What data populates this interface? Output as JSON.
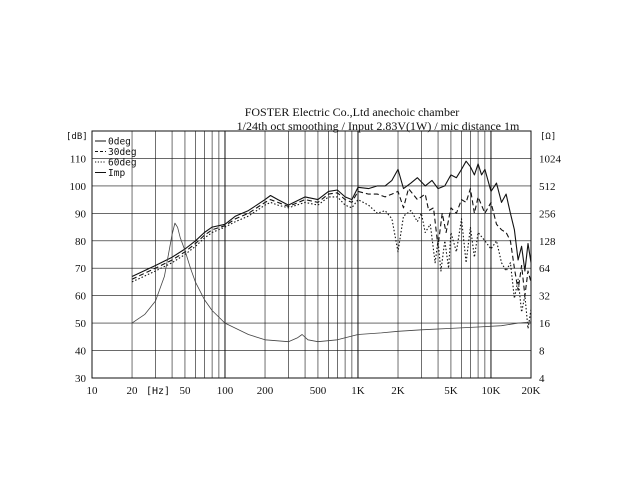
{
  "chart_data": {
    "type": "line",
    "title_lines": [
      "FOSTER Electric Co.,Ltd  anechoic chamber",
      "1/24th oct smoothing / Input 2.83V(1W) / mic distance 1m"
    ],
    "left_unit": "[dB]",
    "right_unit": "[Ω]",
    "x_unit": "[Hz]",
    "x_scale": "log",
    "xlim": [
      10,
      20000
    ],
    "ylim": [
      30,
      120
    ],
    "right_ylim": [
      4,
      2048
    ],
    "x_ticks": [
      {
        "value": 10,
        "label": "10"
      },
      {
        "value": 20,
        "label": "20"
      },
      {
        "value": 50,
        "label": "50"
      },
      {
        "value": 100,
        "label": "100"
      },
      {
        "value": 200,
        "label": "200"
      },
      {
        "value": 500,
        "label": "500"
      },
      {
        "value": 1000,
        "label": "1K"
      },
      {
        "value": 2000,
        "label": "2K"
      },
      {
        "value": 5000,
        "label": "5K"
      },
      {
        "value": 10000,
        "label": "10K"
      },
      {
        "value": 20000,
        "label": "20K"
      }
    ],
    "y_ticks": [
      30,
      40,
      50,
      60,
      70,
      80,
      90,
      100,
      110
    ],
    "right_ticks": [
      {
        "value": 4,
        "label": "4"
      },
      {
        "value": 8,
        "label": "8"
      },
      {
        "value": 16,
        "label": "16"
      },
      {
        "value": 32,
        "label": "32"
      },
      {
        "value": 64,
        "label": "64"
      },
      {
        "value": 128,
        "label": "128"
      },
      {
        "value": 256,
        "label": "256"
      },
      {
        "value": 512,
        "label": "512"
      },
      {
        "value": 1024,
        "label": "1024"
      }
    ],
    "grid": true,
    "legend_position": "top-left",
    "series": [
      {
        "name": "0deg",
        "dash": "solid",
        "axis": "left",
        "points": [
          [
            20,
            67
          ],
          [
            30,
            71
          ],
          [
            40,
            74
          ],
          [
            50,
            77
          ],
          [
            60,
            80
          ],
          [
            70,
            83
          ],
          [
            80,
            85
          ],
          [
            100,
            86
          ],
          [
            120,
            89
          ],
          [
            150,
            91
          ],
          [
            200,
            95
          ],
          [
            220,
            96.5
          ],
          [
            250,
            95
          ],
          [
            300,
            93
          ],
          [
            400,
            96
          ],
          [
            500,
            95
          ],
          [
            600,
            98
          ],
          [
            700,
            98.5
          ],
          [
            800,
            96
          ],
          [
            900,
            95
          ],
          [
            1000,
            99.5
          ],
          [
            1200,
            99
          ],
          [
            1400,
            100
          ],
          [
            1600,
            100
          ],
          [
            1800,
            102
          ],
          [
            2000,
            106
          ],
          [
            2200,
            99
          ],
          [
            2500,
            101
          ],
          [
            2800,
            103
          ],
          [
            3200,
            100
          ],
          [
            3600,
            102
          ],
          [
            4000,
            99
          ],
          [
            4500,
            100
          ],
          [
            5000,
            104
          ],
          [
            5500,
            103
          ],
          [
            6000,
            106
          ],
          [
            6500,
            109
          ],
          [
            7000,
            107
          ],
          [
            7500,
            104
          ],
          [
            8000,
            108
          ],
          [
            8500,
            104
          ],
          [
            9000,
            106
          ],
          [
            10000,
            98
          ],
          [
            11000,
            101
          ],
          [
            12000,
            94
          ],
          [
            13000,
            97
          ],
          [
            14000,
            90
          ],
          [
            15000,
            84
          ],
          [
            16000,
            73
          ],
          [
            17000,
            78
          ],
          [
            18000,
            69
          ],
          [
            19000,
            79
          ],
          [
            20000,
            72
          ]
        ]
      },
      {
        "name": "30deg",
        "dash": "dashed",
        "axis": "left",
        "points": [
          [
            20,
            66
          ],
          [
            30,
            70
          ],
          [
            40,
            73
          ],
          [
            50,
            76
          ],
          [
            60,
            79
          ],
          [
            70,
            82
          ],
          [
            80,
            84
          ],
          [
            100,
            85.5
          ],
          [
            120,
            88
          ],
          [
            150,
            90
          ],
          [
            200,
            94
          ],
          [
            220,
            95
          ],
          [
            250,
            94
          ],
          [
            300,
            92.5
          ],
          [
            400,
            95
          ],
          [
            500,
            94
          ],
          [
            600,
            97
          ],
          [
            700,
            97.5
          ],
          [
            800,
            95
          ],
          [
            900,
            94
          ],
          [
            1000,
            98
          ],
          [
            1200,
            97
          ],
          [
            1400,
            97
          ],
          [
            1600,
            96
          ],
          [
            1800,
            97
          ],
          [
            2000,
            98
          ],
          [
            2200,
            92
          ],
          [
            2400,
            99
          ],
          [
            2800,
            95
          ],
          [
            3200,
            97
          ],
          [
            3400,
            91
          ],
          [
            3700,
            92
          ],
          [
            4000,
            78
          ],
          [
            4300,
            90
          ],
          [
            4600,
            83
          ],
          [
            5000,
            92
          ],
          [
            5500,
            90
          ],
          [
            6000,
            95
          ],
          [
            6500,
            94
          ],
          [
            7000,
            99
          ],
          [
            7500,
            90
          ],
          [
            8000,
            96
          ],
          [
            9000,
            90
          ],
          [
            10000,
            94
          ],
          [
            11000,
            86
          ],
          [
            12000,
            84
          ],
          [
            13000,
            83
          ],
          [
            14000,
            80
          ],
          [
            15000,
            70
          ],
          [
            16000,
            62
          ],
          [
            17000,
            71
          ],
          [
            18000,
            60
          ],
          [
            19000,
            69
          ],
          [
            20000,
            65
          ]
        ]
      },
      {
        "name": "60deg",
        "dash": "dotted",
        "axis": "left",
        "points": [
          [
            20,
            65
          ],
          [
            30,
            69
          ],
          [
            40,
            72
          ],
          [
            50,
            75
          ],
          [
            60,
            78
          ],
          [
            70,
            81
          ],
          [
            80,
            83
          ],
          [
            100,
            85
          ],
          [
            120,
            87
          ],
          [
            150,
            89
          ],
          [
            200,
            93
          ],
          [
            220,
            94
          ],
          [
            250,
            93
          ],
          [
            300,
            92
          ],
          [
            400,
            94
          ],
          [
            500,
            93
          ],
          [
            600,
            96
          ],
          [
            700,
            96
          ],
          [
            800,
            93
          ],
          [
            900,
            92
          ],
          [
            1000,
            95
          ],
          [
            1200,
            93
          ],
          [
            1400,
            90
          ],
          [
            1600,
            91
          ],
          [
            1800,
            88
          ],
          [
            2000,
            76
          ],
          [
            2200,
            89
          ],
          [
            2500,
            91
          ],
          [
            2800,
            87
          ],
          [
            3000,
            90
          ],
          [
            3200,
            83
          ],
          [
            3500,
            86
          ],
          [
            3800,
            72
          ],
          [
            4000,
            80
          ],
          [
            4200,
            69
          ],
          [
            4500,
            80
          ],
          [
            4800,
            70
          ],
          [
            5000,
            83
          ],
          [
            5500,
            76
          ],
          [
            6000,
            88
          ],
          [
            6500,
            72
          ],
          [
            7000,
            85
          ],
          [
            7500,
            74
          ],
          [
            8000,
            83
          ],
          [
            9000,
            80
          ],
          [
            10000,
            77
          ],
          [
            11000,
            80
          ],
          [
            12000,
            72
          ],
          [
            13000,
            69
          ],
          [
            14000,
            72
          ],
          [
            15000,
            59
          ],
          [
            16000,
            66
          ],
          [
            17000,
            54
          ],
          [
            18000,
            60
          ],
          [
            19000,
            48
          ],
          [
            20000,
            55
          ]
        ]
      },
      {
        "name": "Imp",
        "dash": "solid",
        "axis": "right",
        "points": [
          [
            20,
            16
          ],
          [
            25,
            20
          ],
          [
            30,
            28
          ],
          [
            35,
            52
          ],
          [
            40,
            150
          ],
          [
            42,
            200
          ],
          [
            44,
            180
          ],
          [
            46,
            140
          ],
          [
            50,
            100
          ],
          [
            55,
            64
          ],
          [
            60,
            45
          ],
          [
            70,
            29
          ],
          [
            80,
            22
          ],
          [
            100,
            16
          ],
          [
            150,
            12
          ],
          [
            200,
            10.5
          ],
          [
            300,
            10
          ],
          [
            350,
            11
          ],
          [
            380,
            12
          ],
          [
            420,
            10.5
          ],
          [
            500,
            10
          ],
          [
            700,
            10.5
          ],
          [
            1000,
            12
          ],
          [
            1500,
            12.5
          ],
          [
            2000,
            13
          ],
          [
            3000,
            13.5
          ],
          [
            5000,
            14
          ],
          [
            8000,
            14.5
          ],
          [
            12000,
            15
          ],
          [
            16000,
            16
          ],
          [
            20000,
            16.5
          ]
        ]
      }
    ]
  }
}
